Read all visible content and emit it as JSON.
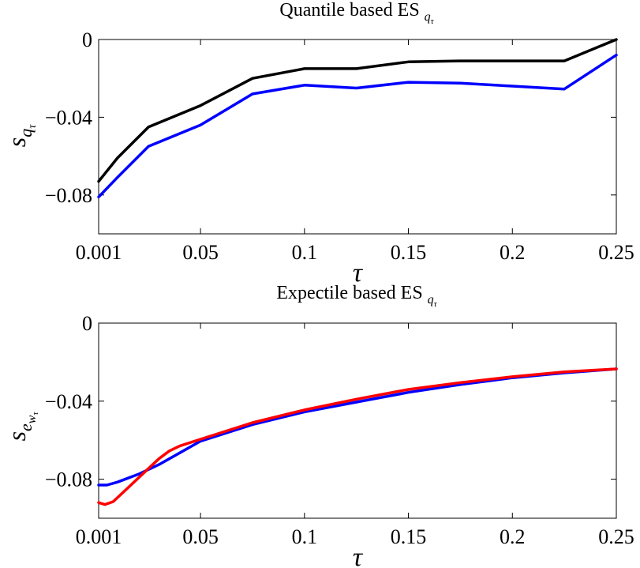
{
  "chart_data": [
    {
      "type": "line",
      "title": "Quantile based ES",
      "title_sub": "q",
      "title_sub_sub": "τ",
      "xlabel": "τ",
      "ylabel": "s",
      "ylabel_sub": "q",
      "ylabel_sub_sub": "τ",
      "xlim": [
        0.001,
        0.25
      ],
      "ylim": [
        -0.1,
        0
      ],
      "xticks": [
        0.001,
        0.05,
        0.1,
        0.15,
        0.2,
        0.25
      ],
      "xtick_labels": [
        "0.001",
        "0.05",
        "0.1",
        "0.15",
        "0.2",
        "0.25"
      ],
      "yticks": [
        0,
        -0.04,
        -0.08
      ],
      "ytick_labels": [
        "0",
        "−0.04",
        "−0.08"
      ],
      "grid": false,
      "series": [
        {
          "color": "#000000",
          "x": [
            0.001,
            0.01,
            0.025,
            0.05,
            0.075,
            0.1,
            0.125,
            0.15,
            0.175,
            0.2,
            0.225,
            0.25
          ],
          "y": [
            -0.073,
            -0.061,
            -0.045,
            -0.034,
            -0.02,
            -0.015,
            -0.015,
            -0.0115,
            -0.011,
            -0.011,
            -0.011,
            0.0
          ]
        },
        {
          "color": "#0000ff",
          "x": [
            0.001,
            0.01,
            0.025,
            0.05,
            0.075,
            0.1,
            0.125,
            0.15,
            0.175,
            0.2,
            0.225,
            0.25
          ],
          "y": [
            -0.081,
            -0.071,
            -0.055,
            -0.044,
            -0.028,
            -0.0235,
            -0.025,
            -0.022,
            -0.0225,
            -0.024,
            -0.0255,
            -0.008
          ]
        }
      ]
    },
    {
      "type": "line",
      "title": "Expectile based ES",
      "title_sub": "q",
      "title_sub_sub": "τ",
      "xlabel": "τ",
      "ylabel": "s",
      "ylabel_sub": "e",
      "ylabel_sub_sub": "w",
      "ylabel_sub_sub_sub": "τ",
      "xlim": [
        0.001,
        0.25
      ],
      "ylim": [
        -0.1,
        0
      ],
      "xticks": [
        0.001,
        0.05,
        0.1,
        0.15,
        0.2,
        0.25
      ],
      "xtick_labels": [
        "0.001",
        "0.05",
        "0.1",
        "0.15",
        "0.2",
        "0.25"
      ],
      "yticks": [
        0,
        -0.04,
        -0.08
      ],
      "ytick_labels": [
        "0",
        "−0.04",
        "−0.08"
      ],
      "grid": false,
      "series": [
        {
          "color": "#0000ff",
          "x": [
            0.001,
            0.005,
            0.01,
            0.02,
            0.025,
            0.03,
            0.04,
            0.05,
            0.075,
            0.1,
            0.125,
            0.15,
            0.175,
            0.2,
            0.225,
            0.25
          ],
          "y": [
            -0.083,
            -0.083,
            -0.0815,
            -0.0775,
            -0.075,
            -0.0725,
            -0.0665,
            -0.0605,
            -0.052,
            -0.0455,
            -0.0405,
            -0.0355,
            -0.0315,
            -0.028,
            -0.0255,
            -0.0235
          ]
        },
        {
          "color": "#ff0000",
          "x": [
            0.001,
            0.004,
            0.008,
            0.012,
            0.018,
            0.025,
            0.03,
            0.035,
            0.04,
            0.05,
            0.075,
            0.1,
            0.125,
            0.15,
            0.175,
            0.2,
            0.225,
            0.25
          ],
          "y": [
            -0.092,
            -0.093,
            -0.0915,
            -0.0875,
            -0.0815,
            -0.0745,
            -0.0695,
            -0.0655,
            -0.063,
            -0.0595,
            -0.051,
            -0.0445,
            -0.039,
            -0.034,
            -0.0305,
            -0.0275,
            -0.025,
            -0.0235
          ]
        }
      ]
    }
  ]
}
